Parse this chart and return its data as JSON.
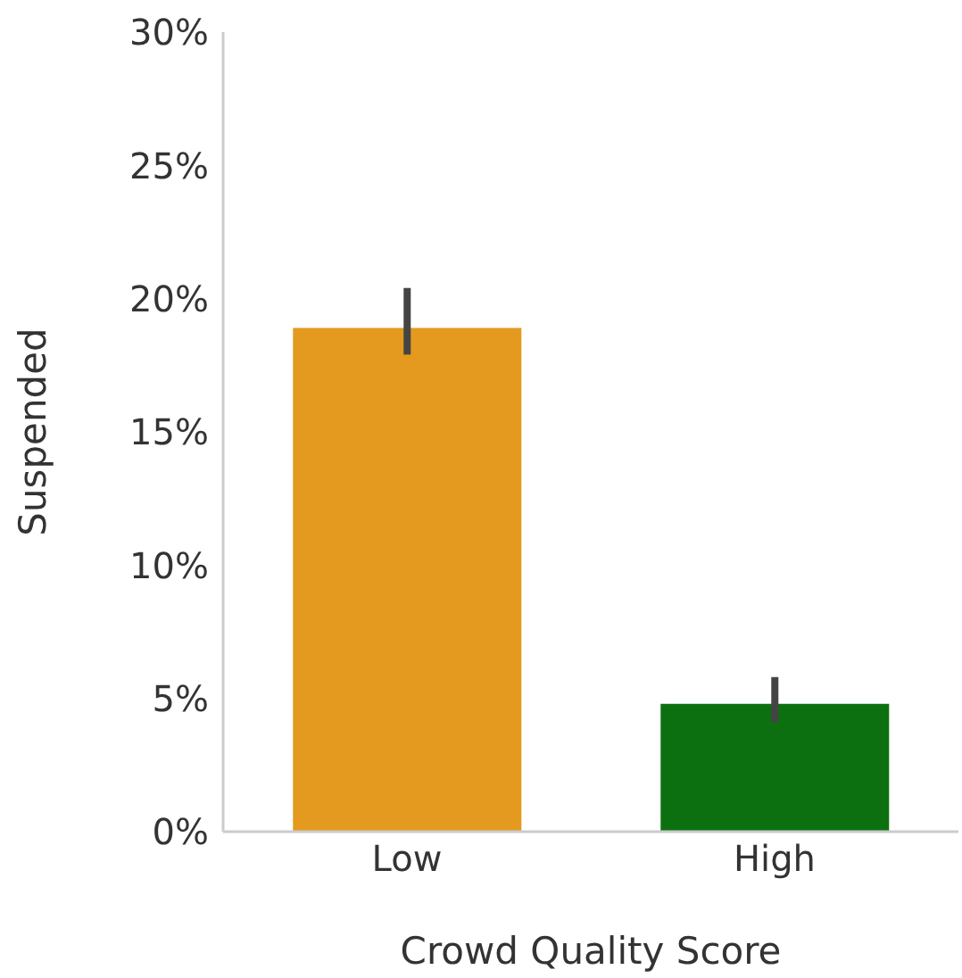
{
  "chart_data": {
    "type": "bar",
    "xlabel": "Crowd Quality Score",
    "ylabel": "Suspended",
    "categories": [
      "Low",
      "High"
    ],
    "values": [
      18.9,
      4.8
    ],
    "colors": [
      "#e39a1e",
      "#0d7010"
    ],
    "errors": [
      [
        17.9,
        20.4
      ],
      [
        4.1,
        5.8
      ]
    ],
    "ylim": [
      0,
      30
    ],
    "yticks": [
      {
        "value": 0,
        "label": "0%"
      },
      {
        "value": 5,
        "label": "5%"
      },
      {
        "value": 10,
        "label": "10%"
      },
      {
        "value": 15,
        "label": "15%"
      },
      {
        "value": 20,
        "label": "20%"
      },
      {
        "value": 25,
        "label": "25%"
      },
      {
        "value": 30,
        "label": "30%"
      }
    ],
    "grid": false,
    "legend": false
  }
}
